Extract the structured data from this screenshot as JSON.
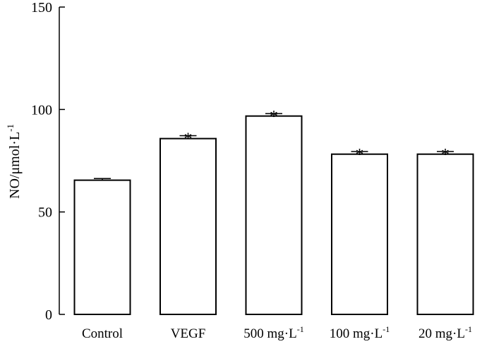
{
  "chart_data": {
    "type": "bar",
    "title": "",
    "xlabel": "",
    "ylabel": "NO/μmol·L",
    "ylabel_superscript": "-1",
    "ylim": [
      0,
      150
    ],
    "yticks": [
      0,
      50,
      100,
      150
    ],
    "categories": [
      {
        "label": "Control",
        "superscript": ""
      },
      {
        "label": "VEGF",
        "superscript": ""
      },
      {
        "label": "500 mg·L",
        "superscript": "-1"
      },
      {
        "label": "100 mg·L",
        "superscript": "-1"
      },
      {
        "label": "20 mg·L",
        "superscript": "-1"
      }
    ],
    "values": [
      65.5,
      85.8,
      96.8,
      78.2,
      78.2
    ],
    "errors": [
      0.8,
      1.4,
      1.2,
      1.3,
      1.3
    ],
    "significance": [
      "",
      "*",
      "*",
      "*",
      "*"
    ],
    "bar_fill": "#ffffff",
    "bar_stroke": "#000000"
  }
}
